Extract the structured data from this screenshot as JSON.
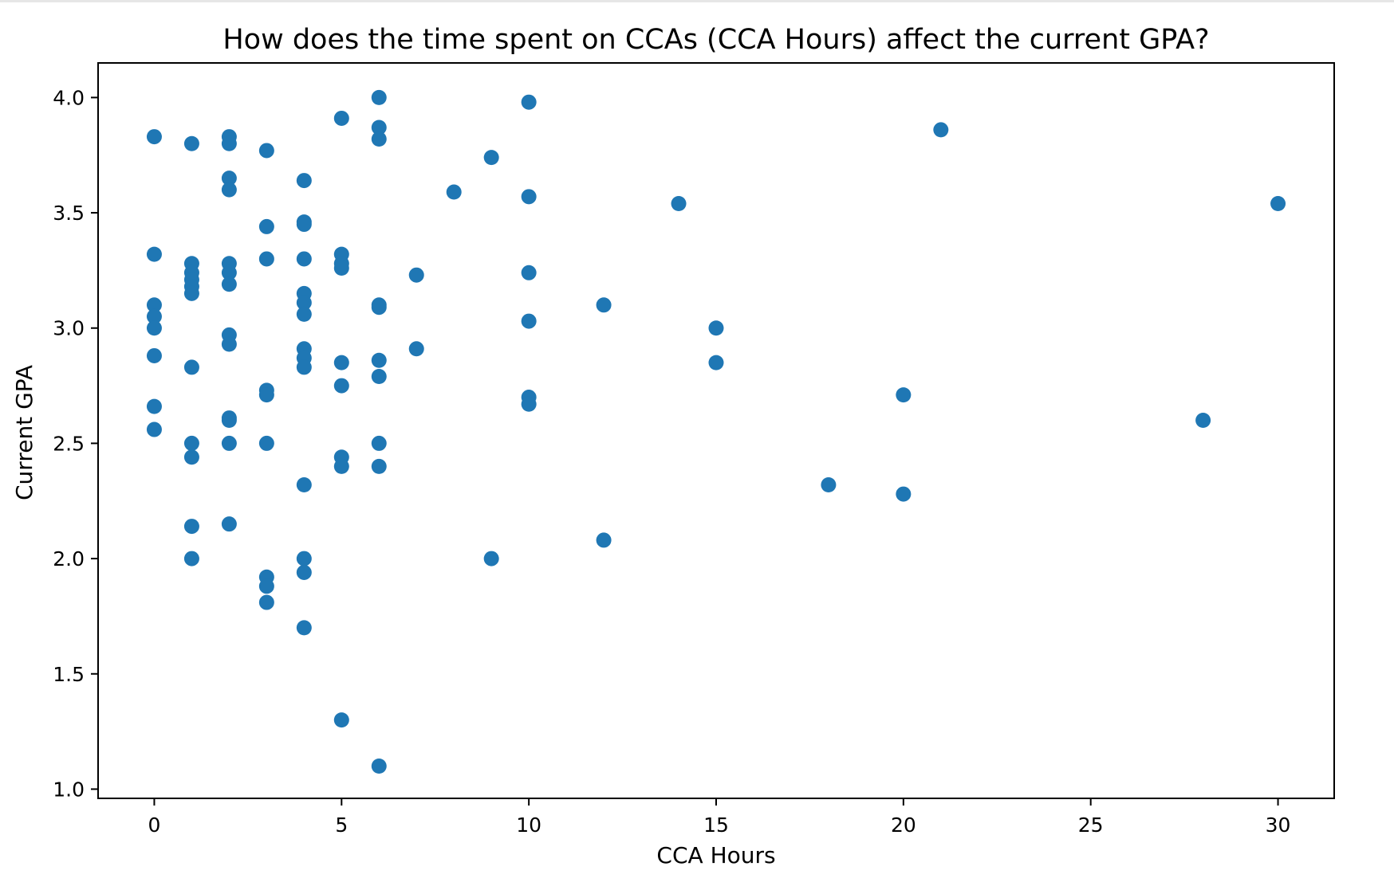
{
  "chart_data": {
    "type": "scatter",
    "title": "How does the time spent on CCAs (CCA Hours) affect the current GPA?",
    "xlabel": "CCA Hours",
    "ylabel": "Current GPA",
    "xlim": [
      -1.5,
      31.5
    ],
    "ylim": [
      0.96,
      4.15
    ],
    "x_ticks": [
      0,
      5,
      10,
      15,
      20,
      25,
      30
    ],
    "y_ticks": [
      1.0,
      1.5,
      2.0,
      2.5,
      3.0,
      3.5,
      4.0
    ],
    "x_tick_labels": [
      "0",
      "5",
      "10",
      "15",
      "20",
      "25",
      "30"
    ],
    "y_tick_labels": [
      "1.0",
      "1.5",
      "2.0",
      "2.5",
      "3.0",
      "3.5",
      "4.0"
    ],
    "grid": false,
    "marker_color": "#1f77b4",
    "points": [
      {
        "x": 0,
        "y": 3.83
      },
      {
        "x": 0,
        "y": 3.32
      },
      {
        "x": 0,
        "y": 3.1
      },
      {
        "x": 0,
        "y": 3.05
      },
      {
        "x": 0,
        "y": 3.0
      },
      {
        "x": 0,
        "y": 2.88
      },
      {
        "x": 0,
        "y": 2.66
      },
      {
        "x": 0,
        "y": 2.56
      },
      {
        "x": 1,
        "y": 3.8
      },
      {
        "x": 1,
        "y": 3.28
      },
      {
        "x": 1,
        "y": 3.24
      },
      {
        "x": 1,
        "y": 3.21
      },
      {
        "x": 1,
        "y": 3.18
      },
      {
        "x": 1,
        "y": 3.15
      },
      {
        "x": 1,
        "y": 2.83
      },
      {
        "x": 1,
        "y": 2.5
      },
      {
        "x": 1,
        "y": 2.44
      },
      {
        "x": 1,
        "y": 2.14
      },
      {
        "x": 1,
        "y": 2.0
      },
      {
        "x": 2,
        "y": 3.83
      },
      {
        "x": 2,
        "y": 3.8
      },
      {
        "x": 2,
        "y": 3.65
      },
      {
        "x": 2,
        "y": 3.6
      },
      {
        "x": 2,
        "y": 3.28
      },
      {
        "x": 2,
        "y": 3.24
      },
      {
        "x": 2,
        "y": 3.19
      },
      {
        "x": 2,
        "y": 2.97
      },
      {
        "x": 2,
        "y": 2.93
      },
      {
        "x": 2,
        "y": 2.61
      },
      {
        "x": 2,
        "y": 2.6
      },
      {
        "x": 2,
        "y": 2.5
      },
      {
        "x": 2,
        "y": 2.15
      },
      {
        "x": 3,
        "y": 3.77
      },
      {
        "x": 3,
        "y": 3.44
      },
      {
        "x": 3,
        "y": 3.3
      },
      {
        "x": 3,
        "y": 2.73
      },
      {
        "x": 3,
        "y": 2.71
      },
      {
        "x": 3,
        "y": 2.5
      },
      {
        "x": 3,
        "y": 1.92
      },
      {
        "x": 3,
        "y": 1.88
      },
      {
        "x": 3,
        "y": 1.81
      },
      {
        "x": 4,
        "y": 3.64
      },
      {
        "x": 4,
        "y": 3.46
      },
      {
        "x": 4,
        "y": 3.45
      },
      {
        "x": 4,
        "y": 3.3
      },
      {
        "x": 4,
        "y": 3.15
      },
      {
        "x": 4,
        "y": 3.11
      },
      {
        "x": 4,
        "y": 3.06
      },
      {
        "x": 4,
        "y": 2.91
      },
      {
        "x": 4,
        "y": 2.87
      },
      {
        "x": 4,
        "y": 2.83
      },
      {
        "x": 4,
        "y": 2.32
      },
      {
        "x": 4,
        "y": 2.0
      },
      {
        "x": 4,
        "y": 1.94
      },
      {
        "x": 4,
        "y": 1.7
      },
      {
        "x": 5,
        "y": 3.91
      },
      {
        "x": 5,
        "y": 3.32
      },
      {
        "x": 5,
        "y": 3.28
      },
      {
        "x": 5,
        "y": 3.26
      },
      {
        "x": 5,
        "y": 2.85
      },
      {
        "x": 5,
        "y": 2.75
      },
      {
        "x": 5,
        "y": 2.44
      },
      {
        "x": 5,
        "y": 2.4
      },
      {
        "x": 5,
        "y": 1.3
      },
      {
        "x": 6,
        "y": 4.0
      },
      {
        "x": 6,
        "y": 3.87
      },
      {
        "x": 6,
        "y": 3.82
      },
      {
        "x": 6,
        "y": 3.1
      },
      {
        "x": 6,
        "y": 3.09
      },
      {
        "x": 6,
        "y": 2.86
      },
      {
        "x": 6,
        "y": 2.79
      },
      {
        "x": 6,
        "y": 2.5
      },
      {
        "x": 6,
        "y": 2.4
      },
      {
        "x": 6,
        "y": 1.1
      },
      {
        "x": 7,
        "y": 3.23
      },
      {
        "x": 7,
        "y": 2.91
      },
      {
        "x": 8,
        "y": 3.59
      },
      {
        "x": 9,
        "y": 3.74
      },
      {
        "x": 9,
        "y": 2.0
      },
      {
        "x": 10,
        "y": 3.98
      },
      {
        "x": 10,
        "y": 3.57
      },
      {
        "x": 10,
        "y": 3.24
      },
      {
        "x": 10,
        "y": 3.03
      },
      {
        "x": 10,
        "y": 2.7
      },
      {
        "x": 10,
        "y": 2.67
      },
      {
        "x": 12,
        "y": 3.1
      },
      {
        "x": 12,
        "y": 2.08
      },
      {
        "x": 14,
        "y": 3.54
      },
      {
        "x": 15,
        "y": 3.0
      },
      {
        "x": 15,
        "y": 2.85
      },
      {
        "x": 18,
        "y": 2.32
      },
      {
        "x": 20,
        "y": 2.71
      },
      {
        "x": 20,
        "y": 2.28
      },
      {
        "x": 21,
        "y": 3.86
      },
      {
        "x": 28,
        "y": 2.6
      },
      {
        "x": 30,
        "y": 3.54
      }
    ]
  }
}
